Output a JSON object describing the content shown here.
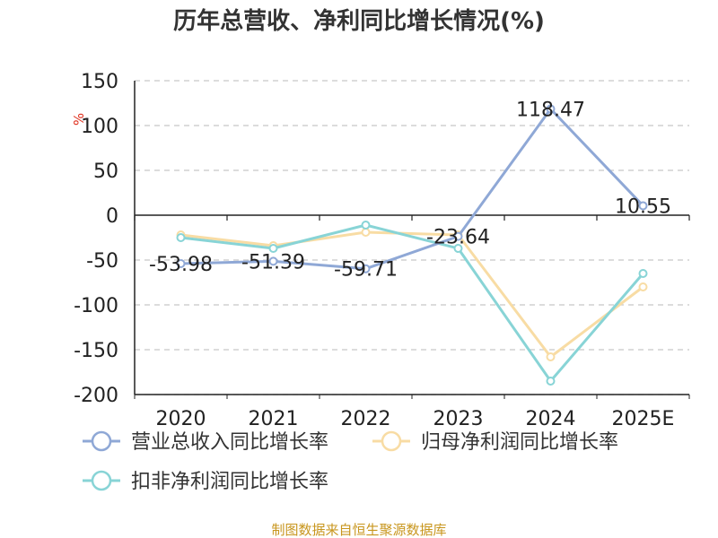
{
  "chart_data": {
    "type": "line",
    "title": "历年总营收、净利同比增长情况(%)",
    "ylabel": "%",
    "categories": [
      "2020",
      "2021",
      "2022",
      "2023",
      "2024",
      "2025E"
    ],
    "ylim": [
      -200,
      150
    ],
    "yticks": [
      150,
      100,
      50,
      0,
      -50,
      -100,
      -150,
      -200
    ],
    "grid": true,
    "legend_position": "bottom",
    "series": [
      {
        "name": "营业总收入同比增长率",
        "color": "#8fa8d6",
        "show_labels": true,
        "values": [
          -53.98,
          -51.39,
          -59.71,
          -23.64,
          118.47,
          10.55
        ]
      },
      {
        "name": "归母净利润同比增长率",
        "color": "#f8dca4",
        "show_labels": false,
        "values": [
          -22,
          -34,
          -19,
          -22,
          -158,
          -80
        ]
      },
      {
        "name": "扣非净利润同比增长率",
        "color": "#88d4d6",
        "show_labels": false,
        "values": [
          -25,
          -37,
          -11,
          -37,
          -185,
          -65
        ]
      }
    ],
    "data_labels": [
      "-53.98",
      "-51.39",
      "-59.71",
      "-23.64",
      "118.47",
      "10.55"
    ]
  },
  "source": "制图数据来自恒生聚源数据库"
}
